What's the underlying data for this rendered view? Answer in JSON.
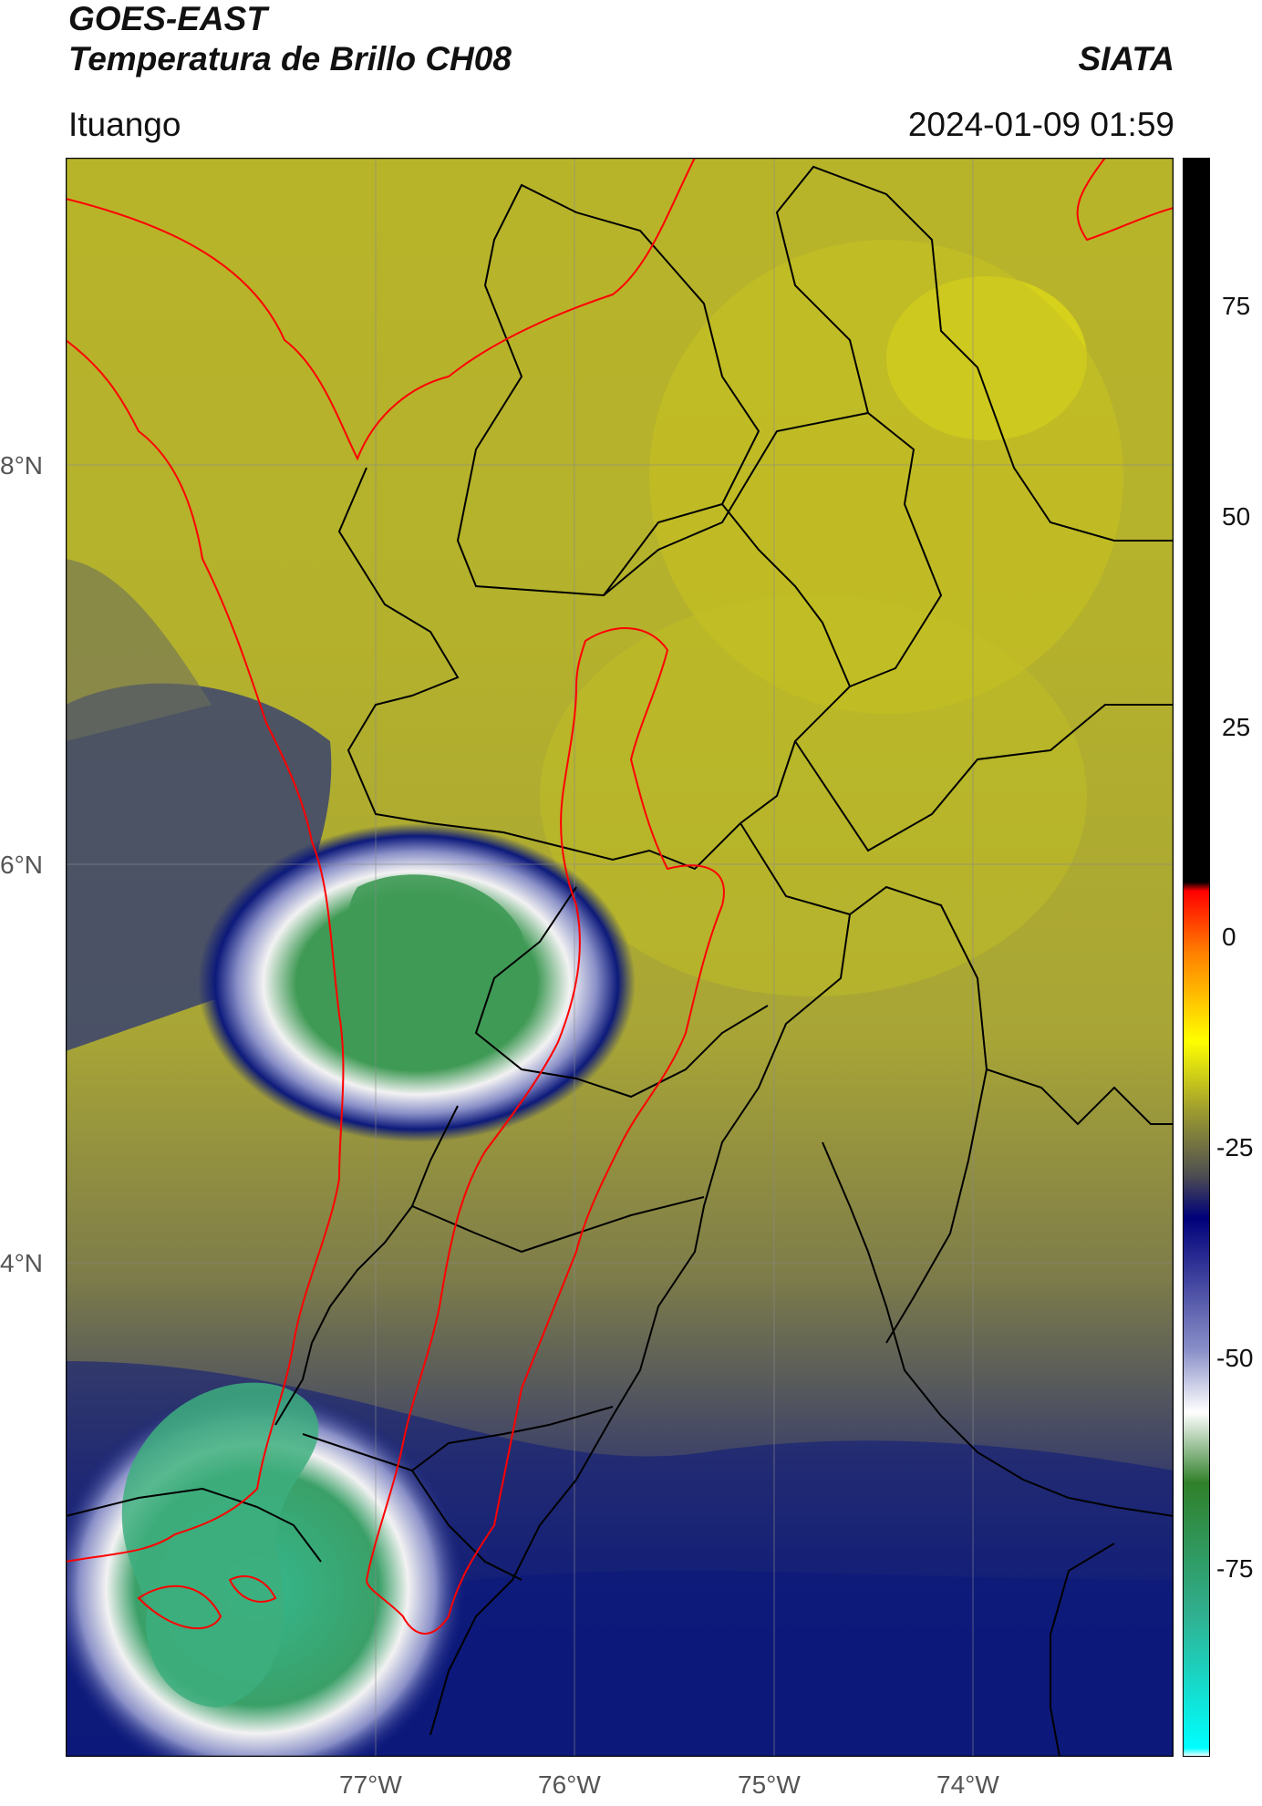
{
  "header": {
    "satellite": "GOES-EAST",
    "product": "Temperatura de Brillo CH08",
    "organization": "SIATA",
    "location": "Ituango",
    "datetime": "2024-01-09 01:59"
  },
  "map": {
    "lat_ticks": [
      "8°N",
      "6°N",
      "4°N"
    ],
    "lon_ticks": [
      "77°W",
      "76°W",
      "75°W",
      "74°W"
    ],
    "colors": {
      "warm_yellow": "#c7c220",
      "olive": "#9b9a3a",
      "grey": "#707060",
      "navy": "#0d1a7a",
      "white": "#f2f2f2",
      "green": "#3f9a55",
      "teal": "#35c0a0",
      "border_black": "#000000",
      "border_red": "#ff0000"
    }
  },
  "colorbar": {
    "labels": [
      "75",
      "50",
      "25",
      "0",
      "-25",
      "-50",
      "-75"
    ],
    "stops": [
      {
        "value": 90,
        "color": "#000000"
      },
      {
        "value": 8,
        "color": "#000000"
      },
      {
        "value": 7,
        "color": "#ff0000"
      },
      {
        "value": 0,
        "color": "#ff8000"
      },
      {
        "value": -10,
        "color": "#ffff00"
      },
      {
        "value": -18,
        "color": "#9c9a30"
      },
      {
        "value": -25,
        "color": "#505050"
      },
      {
        "value": -30,
        "color": "#00007a"
      },
      {
        "value": -45,
        "color": "#8a90c8"
      },
      {
        "value": -52,
        "color": "#ffffff"
      },
      {
        "value": -60,
        "color": "#30802a"
      },
      {
        "value": -75,
        "color": "#30b090"
      },
      {
        "value": -90,
        "color": "#00ffff"
      },
      {
        "value": -91,
        "color": "#ffffff"
      }
    ]
  }
}
